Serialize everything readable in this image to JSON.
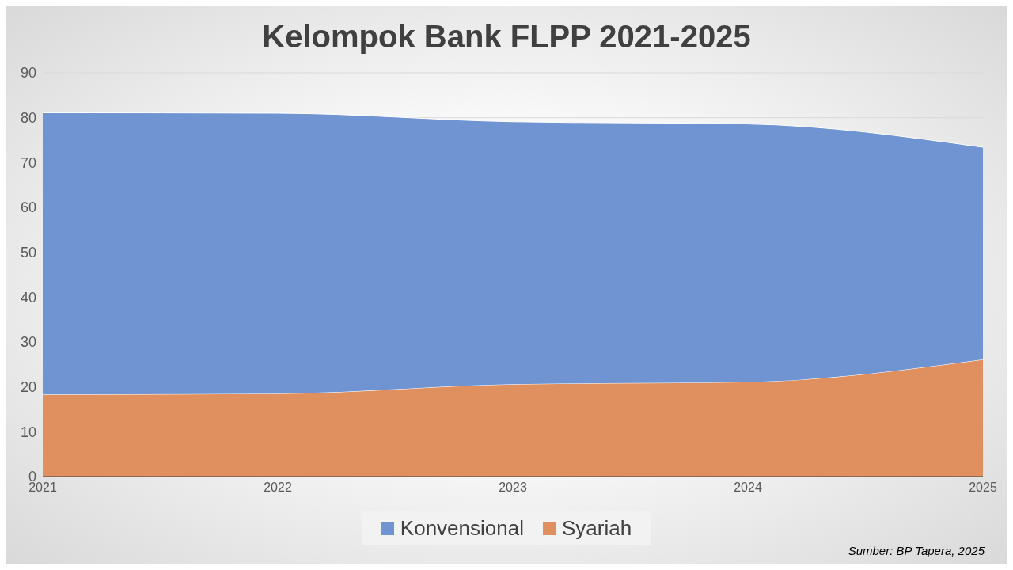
{
  "chart_data": {
    "type": "area",
    "title": "Kelompok Bank FLPP 2021-2025",
    "stacked": true,
    "categories": [
      "2021",
      "2022",
      "2023",
      "2024",
      "2025"
    ],
    "series": [
      {
        "name": "Syariah",
        "color": "#e08f5e",
        "values": [
          18.3,
          18.5,
          20.6,
          21.1,
          26.1
        ]
      },
      {
        "name": "Konvensional",
        "color": "#7093d1",
        "values": [
          62.8,
          62.5,
          58.5,
          57.5,
          47.3
        ]
      }
    ],
    "ylim": [
      0,
      90
    ],
    "yticks": [
      0,
      10,
      20,
      30,
      40,
      50,
      60,
      70,
      80,
      90
    ],
    "grid": "y",
    "legend": "bottom",
    "annotations": [
      "Sumber: BP Tapera, 2025"
    ]
  }
}
